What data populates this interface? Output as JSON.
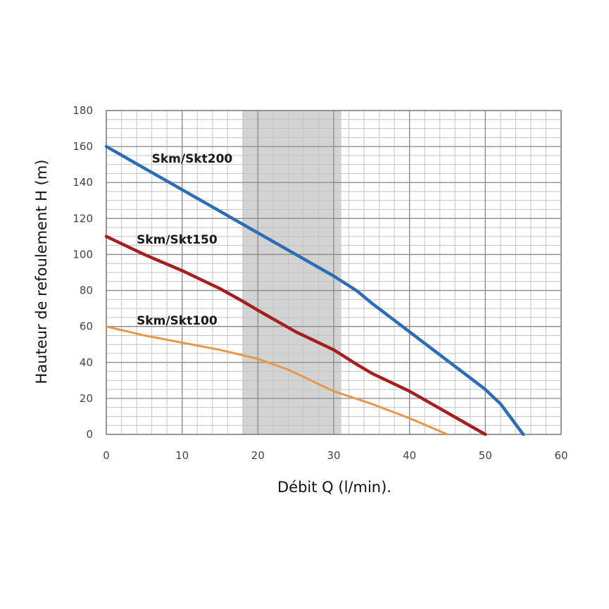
{
  "chart_data": {
    "type": "line",
    "title": "",
    "xlabel": "Débit Q (l/min).",
    "ylabel": "Hauteur de refoulement H (m)",
    "xlim": [
      0,
      60
    ],
    "ylim": [
      0,
      180
    ],
    "x_major_ticks": [
      0,
      10,
      20,
      30,
      40,
      50,
      60
    ],
    "y_major_ticks": [
      0,
      20,
      40,
      60,
      80,
      100,
      120,
      140,
      160,
      180
    ],
    "x_tick_labels": [
      "0",
      "10",
      "20",
      "30",
      "40",
      "50",
      "60"
    ],
    "y_tick_labels": [
      "0",
      "20",
      "40",
      "60",
      "80",
      "100",
      "120",
      "140",
      "160",
      "180"
    ],
    "x_minor_step": 2,
    "y_minor_step": 5,
    "grid": true,
    "legend": "inline labels",
    "highlight_band": {
      "x_range": [
        18,
        31
      ],
      "color": "#d3d3d3"
    },
    "series": [
      {
        "name": "Skm/Skt200",
        "color": "#2e6db4",
        "label_at": [
          6,
          151
        ],
        "points": [
          [
            0,
            160
          ],
          [
            5,
            148
          ],
          [
            10,
            136
          ],
          [
            15,
            124
          ],
          [
            20,
            112
          ],
          [
            25,
            100
          ],
          [
            30,
            88
          ],
          [
            33,
            80
          ],
          [
            35,
            73
          ],
          [
            40,
            57
          ],
          [
            45,
            41
          ],
          [
            50,
            25
          ],
          [
            52,
            17
          ],
          [
            55,
            0
          ]
        ]
      },
      {
        "name": "Skm/Skt150",
        "color": "#a32020",
        "label_at": [
          4,
          106
        ],
        "points": [
          [
            0,
            110
          ],
          [
            5,
            100
          ],
          [
            10,
            91
          ],
          [
            15,
            81
          ],
          [
            18,
            74
          ],
          [
            20,
            69
          ],
          [
            25,
            57
          ],
          [
            30,
            47
          ],
          [
            33,
            39
          ],
          [
            35,
            34
          ],
          [
            40,
            24
          ],
          [
            45,
            12
          ],
          [
            50,
            0
          ]
        ]
      },
      {
        "name": "Skm/Skt100",
        "color": "#e8964a",
        "label_at": [
          4,
          61
        ],
        "points": [
          [
            0,
            60
          ],
          [
            5,
            55
          ],
          [
            10,
            51
          ],
          [
            15,
            47
          ],
          [
            20,
            42
          ],
          [
            24,
            36
          ],
          [
            27,
            30
          ],
          [
            30,
            24
          ],
          [
            35,
            17
          ],
          [
            40,
            9
          ],
          [
            45,
            0
          ]
        ]
      }
    ]
  }
}
